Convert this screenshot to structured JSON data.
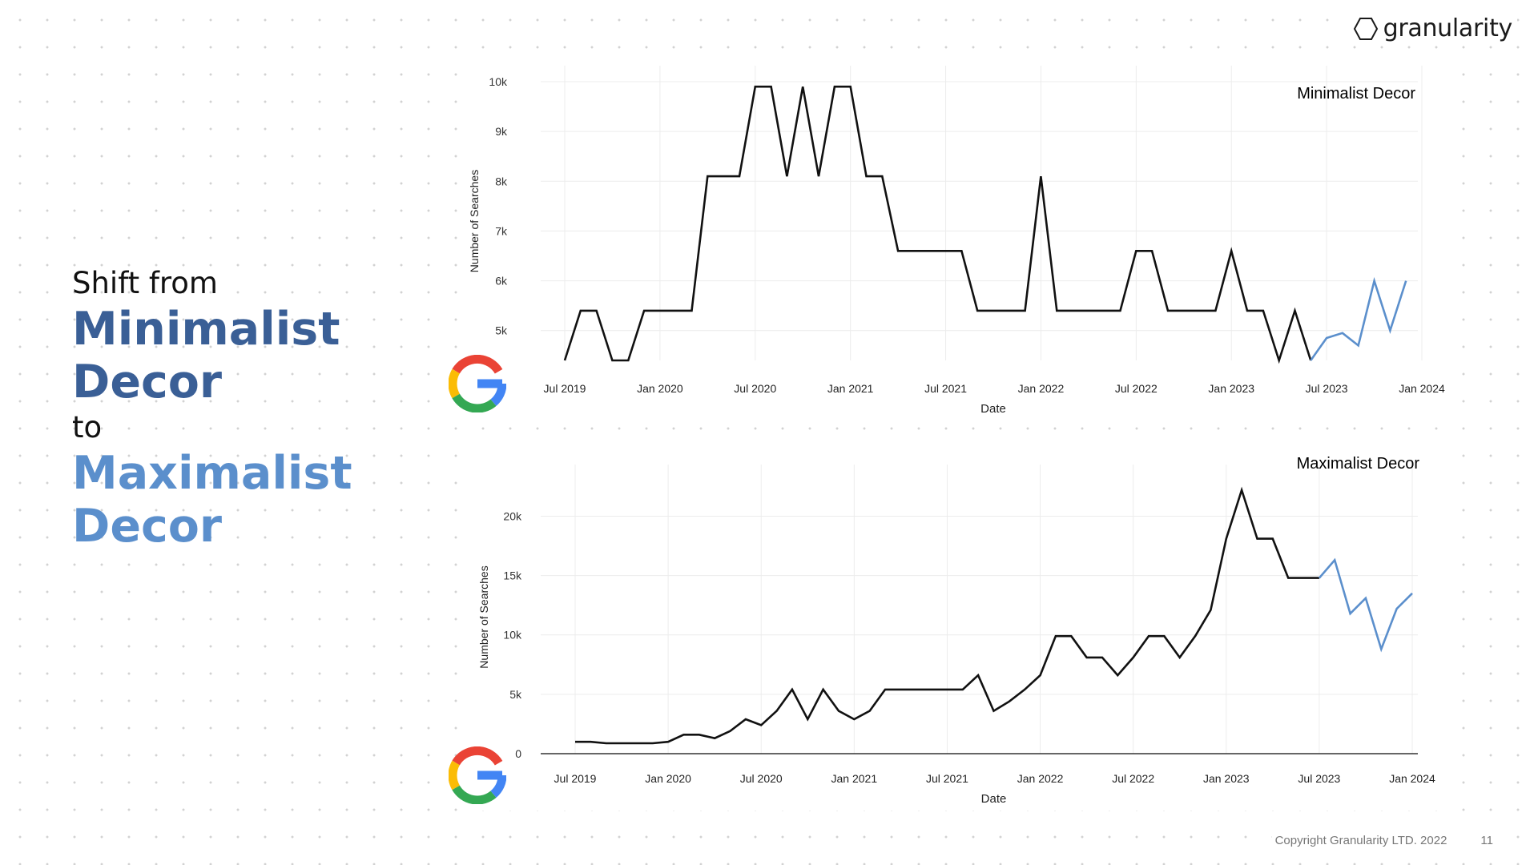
{
  "brand": {
    "name": "granularity"
  },
  "headline": {
    "line1": "Shift from",
    "line2": "Minimalist",
    "line3": "Decor",
    "line4": "to",
    "line5": "Maximalist",
    "line6": "Decor"
  },
  "footer": {
    "copyright": "Copyright Granularity LTD. 2022",
    "page": "11"
  },
  "colors": {
    "dark_blue": "#3a5f96",
    "light_blue": "#5b8fcc",
    "actual_line": "#111111",
    "forecast_line": "#5b8fcc"
  },
  "icons": [
    "hexagon-logo-icon",
    "google-g-icon"
  ],
  "chart_data": [
    {
      "type": "line",
      "title": "Minimalist Decor",
      "xlabel": "Date",
      "ylabel": "Number of Searches",
      "x_ticks": [
        "Jul 2019",
        "Jan 2020",
        "Jul 2020",
        "Jan 2021",
        "Jul 2021",
        "Jan 2022",
        "Jul 2022",
        "Jan 2023",
        "Jul 2023",
        "Jan 2024"
      ],
      "x_range": [
        "2019-07",
        "2024-01"
      ],
      "y_ticks": [
        "5k",
        "6k",
        "7k",
        "8k",
        "9k",
        "10k"
      ],
      "ylim": [
        4400,
        10000
      ],
      "grid": true,
      "series": [
        {
          "role": "actual",
          "color": "#111111",
          "points": [
            [
              "2019-07",
              4400
            ],
            [
              "2019-08",
              5400
            ],
            [
              "2019-09",
              5400
            ],
            [
              "2019-10",
              4400
            ],
            [
              "2019-11",
              4400
            ],
            [
              "2019-12",
              5400
            ],
            [
              "2020-01",
              5400
            ],
            [
              "2020-02",
              5400
            ],
            [
              "2020-03",
              5400
            ],
            [
              "2020-04",
              8100
            ],
            [
              "2020-05",
              8100
            ],
            [
              "2020-06",
              8100
            ],
            [
              "2020-07",
              9900
            ],
            [
              "2020-08",
              9900
            ],
            [
              "2020-09",
              8100
            ],
            [
              "2020-10",
              9900
            ],
            [
              "2020-11",
              8100
            ],
            [
              "2020-12",
              9900
            ],
            [
              "2021-01",
              9900
            ],
            [
              "2021-02",
              8100
            ],
            [
              "2021-03",
              8100
            ],
            [
              "2021-04",
              6600
            ],
            [
              "2021-05",
              6600
            ],
            [
              "2021-06",
              6600
            ],
            [
              "2021-07",
              6600
            ],
            [
              "2021-08",
              6600
            ],
            [
              "2021-09",
              5400
            ],
            [
              "2021-10",
              5400
            ],
            [
              "2021-11",
              5400
            ],
            [
              "2021-12",
              5400
            ],
            [
              "2022-01",
              8100
            ],
            [
              "2022-02",
              5400
            ],
            [
              "2022-03",
              5400
            ],
            [
              "2022-04",
              5400
            ],
            [
              "2022-05",
              5400
            ],
            [
              "2022-06",
              5400
            ],
            [
              "2022-07",
              6600
            ],
            [
              "2022-08",
              6600
            ],
            [
              "2022-09",
              5400
            ],
            [
              "2022-10",
              5400
            ],
            [
              "2022-11",
              5400
            ],
            [
              "2022-12",
              5400
            ],
            [
              "2023-01",
              6600
            ],
            [
              "2023-02",
              5400
            ],
            [
              "2023-03",
              5400
            ],
            [
              "2023-04",
              4400
            ],
            [
              "2023-05",
              5400
            ],
            [
              "2023-06",
              4400
            ]
          ]
        },
        {
          "role": "forecast",
          "color": "#5b8fcc",
          "points": [
            [
              "2023-06",
              4400
            ],
            [
              "2023-07",
              4850
            ],
            [
              "2023-08",
              4950
            ],
            [
              "2023-09",
              4700
            ],
            [
              "2023-10",
              6000
            ],
            [
              "2023-11",
              5000
            ],
            [
              "2023-12",
              6000
            ]
          ]
        }
      ]
    },
    {
      "type": "line",
      "title": "Maximalist Decor",
      "xlabel": "Date",
      "ylabel": "Number of Searches",
      "x_ticks": [
        "Jul 2019",
        "Jan 2020",
        "Jul 2020",
        "Jan 2021",
        "Jul 2021",
        "Jan 2022",
        "Jul 2022",
        "Jan 2023",
        "Jul 2023",
        "Jan 2024"
      ],
      "x_range": [
        "2019-07",
        "2024-01"
      ],
      "y_ticks": [
        "0",
        "5k",
        "10k",
        "15k",
        "20k"
      ],
      "ylim": [
        0,
        23000
      ],
      "grid": true,
      "series": [
        {
          "role": "actual",
          "color": "#111111",
          "points": [
            [
              "2019-07",
              1000
            ],
            [
              "2019-08",
              1000
            ],
            [
              "2019-09",
              880
            ],
            [
              "2019-10",
              880
            ],
            [
              "2019-11",
              880
            ],
            [
              "2019-12",
              880
            ],
            [
              "2020-01",
              1000
            ],
            [
              "2020-02",
              1600
            ],
            [
              "2020-03",
              1600
            ],
            [
              "2020-04",
              1300
            ],
            [
              "2020-05",
              1900
            ],
            [
              "2020-06",
              2900
            ],
            [
              "2020-07",
              2400
            ],
            [
              "2020-08",
              3600
            ],
            [
              "2020-09",
              5400
            ],
            [
              "2020-10",
              2900
            ],
            [
              "2020-11",
              5400
            ],
            [
              "2020-12",
              3600
            ],
            [
              "2021-01",
              2900
            ],
            [
              "2021-02",
              3600
            ],
            [
              "2021-03",
              5400
            ],
            [
              "2021-04",
              5400
            ],
            [
              "2021-05",
              5400
            ],
            [
              "2021-06",
              5400
            ],
            [
              "2021-07",
              5400
            ],
            [
              "2021-08",
              5400
            ],
            [
              "2021-09",
              6600
            ],
            [
              "2021-10",
              3600
            ],
            [
              "2021-11",
              4400
            ],
            [
              "2021-12",
              5400
            ],
            [
              "2022-01",
              6600
            ],
            [
              "2022-02",
              9900
            ],
            [
              "2022-03",
              9900
            ],
            [
              "2022-04",
              8100
            ],
            [
              "2022-05",
              8100
            ],
            [
              "2022-06",
              6600
            ],
            [
              "2022-07",
              8100
            ],
            [
              "2022-08",
              9900
            ],
            [
              "2022-09",
              9900
            ],
            [
              "2022-10",
              8100
            ],
            [
              "2022-11",
              9900
            ],
            [
              "2022-12",
              12100
            ],
            [
              "2023-01",
              18100
            ],
            [
              "2023-02",
              22200
            ],
            [
              "2023-03",
              18100
            ],
            [
              "2023-04",
              18100
            ],
            [
              "2023-05",
              14800
            ],
            [
              "2023-06",
              14800
            ],
            [
              "2023-07",
              14800
            ]
          ]
        },
        {
          "role": "forecast",
          "color": "#5b8fcc",
          "points": [
            [
              "2023-07",
              14800
            ],
            [
              "2023-08",
              16300
            ],
            [
              "2023-09",
              11800
            ],
            [
              "2023-10",
              13100
            ],
            [
              "2023-11",
              8800
            ],
            [
              "2023-12",
              12200
            ],
            [
              "2024-01",
              13500
            ]
          ]
        }
      ]
    }
  ]
}
